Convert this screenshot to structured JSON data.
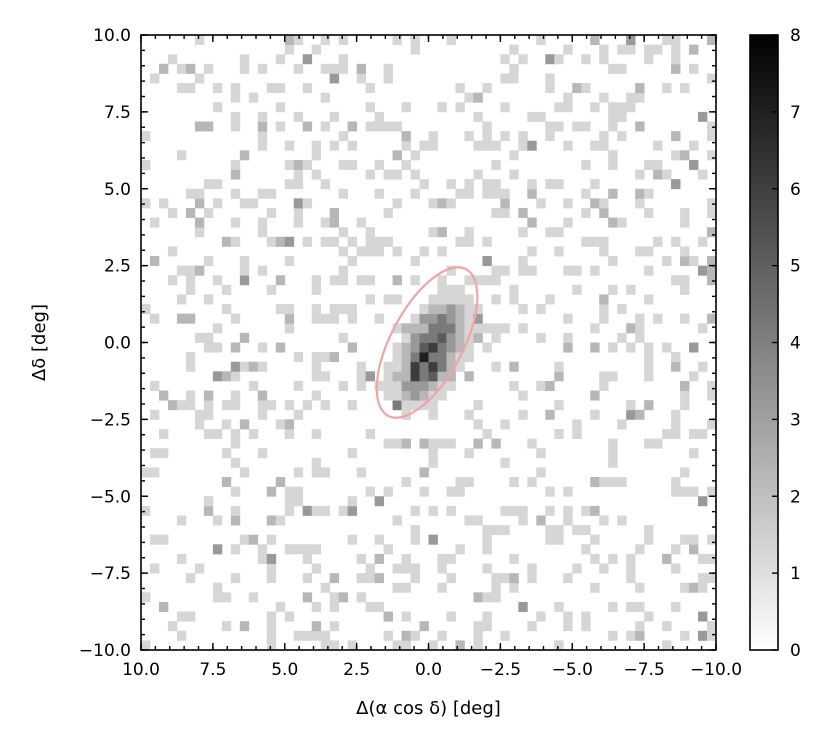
{
  "chart_data": {
    "type": "heatmap",
    "title": "",
    "xlabel": "Δ(α cos δ) [deg]",
    "ylabel": "Δδ [deg]",
    "xlim": [
      10.0,
      -10.0
    ],
    "ylim": [
      -10.0,
      10.0
    ],
    "x_inverted": true,
    "bins": [
      64,
      64
    ],
    "xticks": [
      10.0,
      7.5,
      5.0,
      2.5,
      0.0,
      -2.5,
      -5.0,
      -7.5,
      -10.0
    ],
    "xtick_labels": [
      "10.0",
      "7.5",
      "5.0",
      "2.5",
      "0.0",
      "−2.5",
      "−5.0",
      "−7.5",
      "−10.0"
    ],
    "yticks": [
      10.0,
      7.5,
      5.0,
      2.5,
      0.0,
      -2.5,
      -5.0,
      -7.5,
      -10.0
    ],
    "ytick_labels": [
      "10.0",
      "7.5",
      "5.0",
      "2.5",
      "0.0",
      "−2.5",
      "−5.0",
      "−7.5",
      "−10.0"
    ],
    "colormap": "gray_r",
    "colorbar": {
      "vmin": 0,
      "vmax": 8,
      "ticks": [
        0,
        1,
        2,
        3,
        4,
        5,
        6,
        7,
        8
      ],
      "tick_labels": [
        "0",
        "1",
        "2",
        "3",
        "4",
        "5",
        "6",
        "7",
        "8"
      ]
    },
    "overdensity": {
      "center": [
        -0.1,
        -0.3
      ],
      "peak_counts": 8,
      "spread": [
        0.55,
        1.1
      ],
      "tilt_deg": 30
    },
    "ellipse": {
      "center": [
        0.05,
        0.0
      ],
      "semi_major": 2.7,
      "semi_minor": 1.25,
      "angle_deg": -28,
      "color": "#f2a3a3"
    },
    "grid": false,
    "legend": "none"
  }
}
